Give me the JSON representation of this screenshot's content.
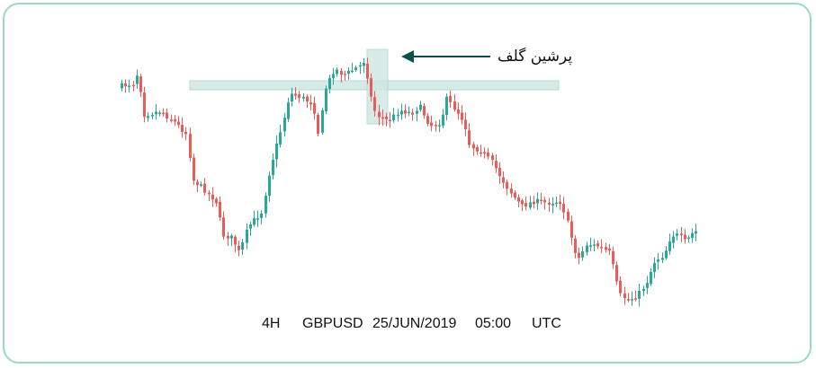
{
  "chart_data": {
    "type": "candlestick",
    "symbol": "GBPUSD",
    "timeframe": "4H",
    "date": "25/JUN/2019",
    "time": "05:00",
    "timezone": "UTC",
    "annotation": "پرشین گلف",
    "colors": {
      "up": "#2aa79b",
      "down": "#ec5b55",
      "zone": "#cfe7e3",
      "zone_border": "#a8d4cc",
      "arrow": "#0d4f4b",
      "frame": "#9fd6cc"
    }
  }
}
